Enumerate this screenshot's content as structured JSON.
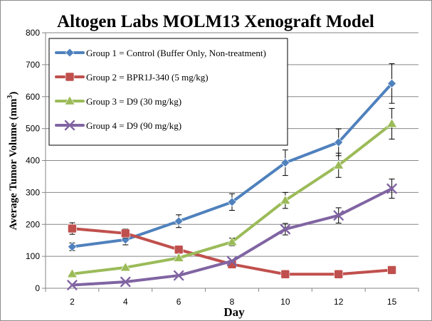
{
  "chart_data": {
    "type": "line",
    "title": "Altogen Labs MOLM13 Xenograft Model",
    "xlabel": "Day",
    "ylabel": "Average Tumor Volume (mm",
    "ylabel_sup": "3",
    "ylabel_close": ")",
    "x": [
      2,
      4,
      6,
      8,
      10,
      12,
      15
    ],
    "x_tick_labels": [
      "2",
      "4",
      "6",
      "8",
      "10",
      "12",
      "15"
    ],
    "ylim": [
      0,
      800
    ],
    "y_ticks": [
      0,
      100,
      200,
      300,
      400,
      500,
      600,
      700,
      800
    ],
    "grid": "horizontal",
    "legend_position": "top-left",
    "series": [
      {
        "name": "Group 1 = Control (Buffer Only, Non-treatment)",
        "color": "#4f81bd",
        "marker": "diamond",
        "values": [
          130,
          152,
          210,
          270,
          393,
          457,
          641
        ],
        "errors": [
          12,
          16,
          20,
          26,
          40,
          42,
          62
        ]
      },
      {
        "name": "Group 2 = BPR1J-340 (5 mg/kg)",
        "color": "#c0504d",
        "marker": "square",
        "values": [
          187,
          172,
          121,
          75,
          44,
          44,
          57
        ],
        "errors": [
          18,
          14,
          0,
          0,
          0,
          0,
          0
        ]
      },
      {
        "name": "Group 3 = D9 (30 mg/kg)",
        "color": "#9bbb59",
        "marker": "triangle",
        "values": [
          45,
          65,
          95,
          145,
          275,
          385,
          515
        ],
        "errors": [
          0,
          0,
          0,
          12,
          25,
          38,
          48
        ]
      },
      {
        "name": "Group 4 = D9 (90 mg/kg)",
        "color": "#8064a2",
        "marker": "x",
        "values": [
          10,
          20,
          40,
          85,
          185,
          228,
          312
        ],
        "errors": [
          0,
          0,
          0,
          0,
          18,
          24,
          30
        ]
      }
    ]
  }
}
